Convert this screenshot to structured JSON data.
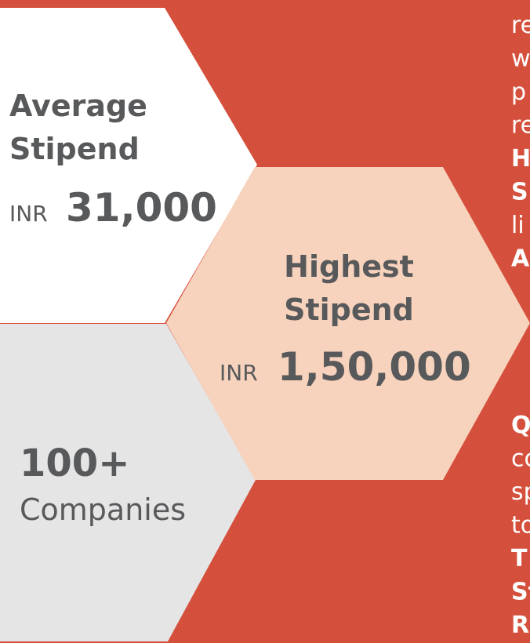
{
  "stats": {
    "average": {
      "title_line1": "Average",
      "title_line2": "Stipend",
      "currency": "INR",
      "amount": "31,000"
    },
    "highest": {
      "title_line1": "Highest",
      "title_line2": "Stipend",
      "currency": "INR",
      "amount": "1,50,000"
    },
    "companies": {
      "count": "100+",
      "label": "Companies"
    }
  },
  "side_text": {
    "top": [
      "re",
      "w",
      "p",
      "re",
      "H",
      "S",
      "li",
      "A"
    ],
    "bottom": [
      "Q",
      "co",
      "sp",
      "to",
      "T",
      "St",
      "R"
    ]
  }
}
